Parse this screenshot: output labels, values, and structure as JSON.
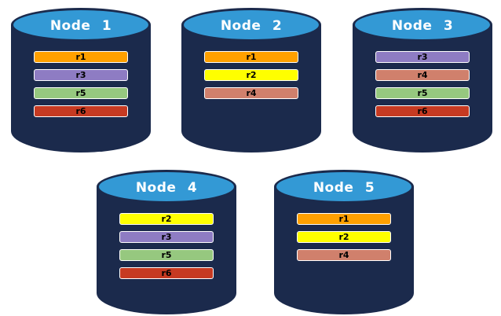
{
  "colors": {
    "background": "#FFFFFF",
    "cylinder_body": "#1B2A4C",
    "cylinder_top": "#3399D5",
    "title_text": "#FFFFFF",
    "bar_text": "#000000",
    "bar_border": "#FFFFFF",
    "replicas": {
      "r1": "#FFA000",
      "r2": "#FFFF00",
      "r3": "#8E7CC3",
      "r4": "#D0806C",
      "r5": "#96C87F",
      "r6": "#C63A22"
    }
  },
  "nodes": [
    {
      "label": "Node 1",
      "replicas": [
        "r1",
        "r3",
        "r5",
        "r6"
      ]
    },
    {
      "label": "Node 2",
      "replicas": [
        "r1",
        "r2",
        "r4"
      ]
    },
    {
      "label": "Node 3",
      "replicas": [
        "r3",
        "r4",
        "r5",
        "r6"
      ]
    },
    {
      "label": "Node 4",
      "replicas": [
        "r2",
        "r3",
        "r5",
        "r6"
      ]
    },
    {
      "label": "Node 5",
      "replicas": [
        "r1",
        "r2",
        "r4"
      ]
    }
  ]
}
